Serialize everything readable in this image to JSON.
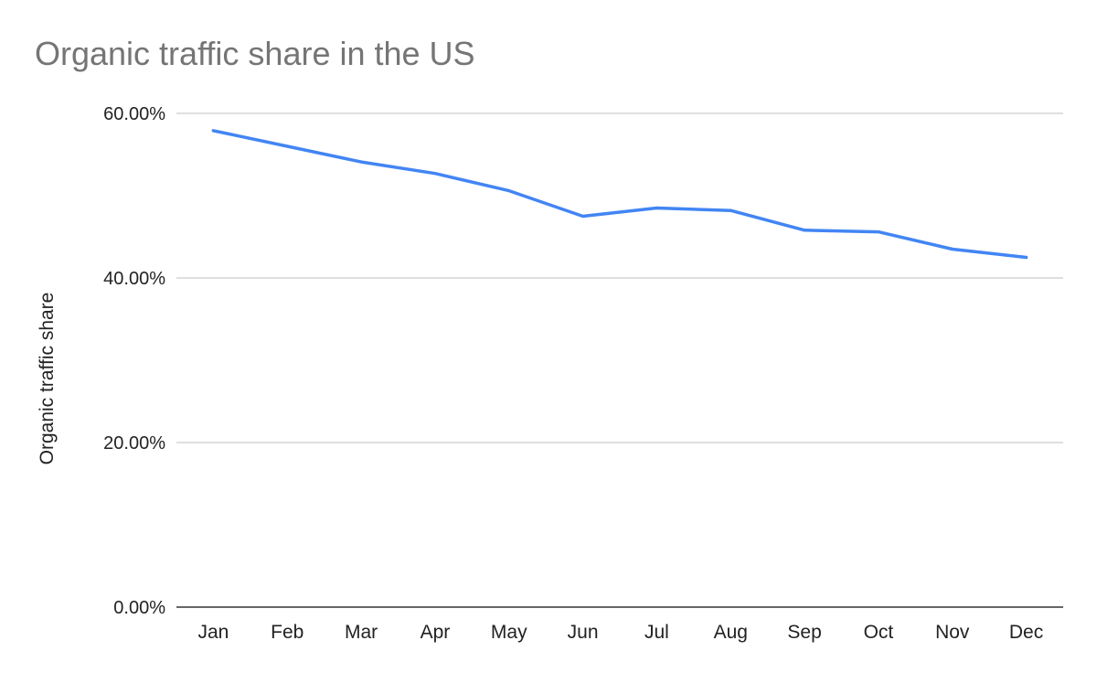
{
  "chart_data": {
    "type": "line",
    "title": "Organic traffic share in the US",
    "xlabel": "",
    "ylabel": "Organic traffic share",
    "categories": [
      "Jan",
      "Feb",
      "Mar",
      "Apr",
      "May",
      "Jun",
      "Jul",
      "Aug",
      "Sep",
      "Oct",
      "Nov",
      "Dec"
    ],
    "series": [
      {
        "values": [
          57.9,
          56.0,
          54.1,
          52.7,
          50.6,
          47.5,
          48.5,
          48.2,
          45.8,
          45.6,
          43.5,
          42.5
        ],
        "color": "#4285F4"
      }
    ],
    "ylim": [
      0,
      60
    ],
    "yticks": [
      0,
      20,
      40,
      60
    ],
    "ytick_labels": [
      "0.00%",
      "20.00%",
      "40.00%",
      "60.00%"
    ],
    "grid": true,
    "legend": "none",
    "colors": {
      "title": "#757575",
      "grid": "#cccccc",
      "axis": "#333333",
      "text": "#222222"
    }
  }
}
